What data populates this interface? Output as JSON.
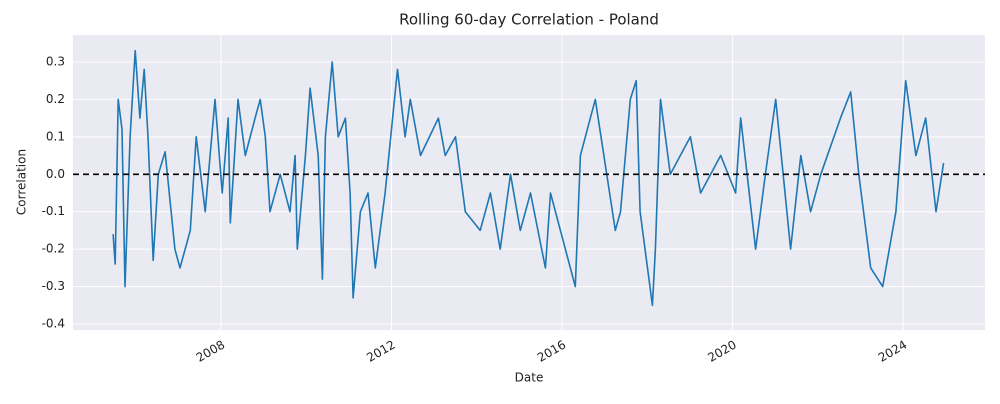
{
  "chart_data": {
    "type": "line",
    "title": "Rolling 60-day Correlation - Poland",
    "xlabel": "Date",
    "ylabel": "Correlation",
    "x": [
      2005.47,
      2005.52,
      2005.59,
      2005.68,
      2005.75,
      2005.87,
      2005.99,
      2006.1,
      2006.2,
      2006.29,
      2006.41,
      2006.53,
      2006.69,
      2006.92,
      2007.04,
      2007.28,
      2007.42,
      2007.63,
      2007.86,
      2008.03,
      2008.17,
      2008.22,
      2008.4,
      2008.57,
      2008.8,
      2008.92,
      2009.04,
      2009.15,
      2009.39,
      2009.62,
      2009.74,
      2009.79,
      2009.98,
      2010.09,
      2010.28,
      2010.38,
      2010.45,
      2010.61,
      2010.75,
      2010.92,
      2011.03,
      2011.1,
      2011.27,
      2011.45,
      2011.62,
      2011.85,
      2012.14,
      2012.32,
      2012.44,
      2012.68,
      2013.1,
      2013.26,
      2013.5,
      2013.73,
      2014.08,
      2014.32,
      2014.55,
      2014.79,
      2015.02,
      2015.26,
      2015.61,
      2015.73,
      2016.31,
      2016.43,
      2016.78,
      2017.25,
      2017.37,
      2017.6,
      2017.74,
      2017.83,
      2018.12,
      2018.19,
      2018.31,
      2018.54,
      2019.01,
      2019.25,
      2019.72,
      2020.07,
      2020.19,
      2020.54,
      2020.77,
      2021.01,
      2021.36,
      2021.6,
      2021.83,
      2022.07,
      2022.53,
      2022.77,
      2022.96,
      2023.24,
      2023.52,
      2023.83,
      2024.06,
      2024.3,
      2024.53,
      2024.77,
      2024.95
    ],
    "series": [
      {
        "name": "Poland",
        "color": "#1f77b4",
        "values": [
          -0.16,
          -0.24,
          0.2,
          0.12,
          -0.3,
          0.1,
          0.33,
          0.15,
          0.28,
          0.1,
          -0.23,
          0.0,
          0.06,
          -0.2,
          -0.25,
          -0.15,
          0.1,
          -0.1,
          0.2,
          -0.05,
          0.15,
          -0.13,
          0.2,
          0.05,
          0.15,
          0.2,
          0.1,
          -0.1,
          0.0,
          -0.1,
          0.05,
          -0.2,
          0.05,
          0.23,
          0.05,
          -0.28,
          0.1,
          0.3,
          0.1,
          0.15,
          -0.05,
          -0.33,
          -0.1,
          -0.05,
          -0.25,
          -0.05,
          0.28,
          0.1,
          0.2,
          0.05,
          0.15,
          0.05,
          0.1,
          -0.1,
          -0.15,
          -0.05,
          -0.2,
          0.0,
          -0.15,
          -0.05,
          -0.25,
          -0.05,
          -0.3,
          0.05,
          0.2,
          -0.15,
          -0.1,
          0.2,
          0.25,
          -0.1,
          -0.35,
          -0.2,
          0.2,
          0.0,
          0.1,
          -0.05,
          0.05,
          -0.05,
          0.15,
          -0.2,
          0.0,
          0.2,
          -0.2,
          0.05,
          -0.1,
          0.0,
          0.15,
          0.22,
          0.0,
          -0.25,
          -0.3,
          -0.1,
          0.25,
          0.05,
          0.15,
          -0.1,
          0.03
        ]
      }
    ],
    "xlim": [
      2004.53,
      2025.92
    ],
    "xticks": [
      2008,
      2012,
      2016,
      2020,
      2024
    ],
    "ylim": [
      -0.416,
      0.372
    ],
    "yticks": [
      0.3,
      0.2,
      0.1,
      {
        "value": 0,
        "label": "0.0"
      },
      -0.1,
      -0.2,
      -0.3,
      -0.4
    ],
    "hline": 0,
    "grid": true
  }
}
